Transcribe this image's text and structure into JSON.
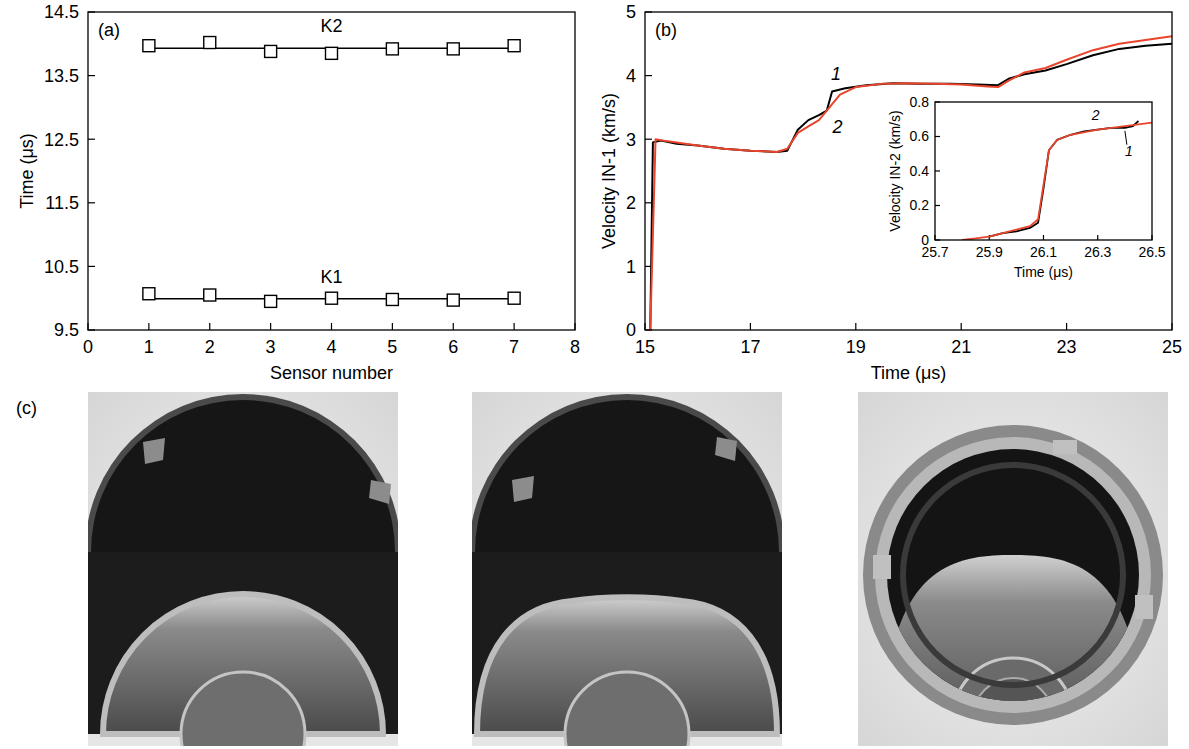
{
  "chart_data": [
    {
      "type": "scatter",
      "label": "(a)",
      "xlabel": "Sensor number",
      "ylabel": "Time (μs)",
      "x": [
        1,
        2,
        3,
        4,
        5,
        6,
        7
      ],
      "xlim": [
        0,
        8
      ],
      "xticks": [
        0,
        1,
        2,
        3,
        4,
        5,
        6,
        7,
        8
      ],
      "ylim": [
        9.5,
        14.5
      ],
      "yticks": [
        9.5,
        10.5,
        11.5,
        12.5,
        13.5,
        14.5
      ],
      "series": [
        {
          "name": "K1",
          "color": "#000000",
          "marker": "square",
          "values": [
            10.07,
            10.05,
            9.95,
            10.0,
            9.98,
            9.97,
            10.0
          ],
          "fit": 9.99
        },
        {
          "name": "K2",
          "color": "#000000",
          "marker": "square",
          "values": [
            13.97,
            14.02,
            13.88,
            13.85,
            13.92,
            13.92,
            13.97
          ],
          "fit": 13.93
        }
      ]
    },
    {
      "type": "line",
      "label": "(b)",
      "xlabel": "Time (μs)",
      "ylabel": "Velocity IN-1 (km/s)",
      "xlim": [
        15,
        25
      ],
      "xticks": [
        15,
        17,
        19,
        21,
        23,
        25
      ],
      "ylim": [
        0,
        5
      ],
      "yticks": [
        0,
        1,
        2,
        3,
        4,
        5
      ],
      "series": [
        {
          "name": "1",
          "color": "#000000",
          "line_style": "solid",
          "x": [
            15.1,
            15.15,
            15.3,
            15.6,
            16.0,
            16.5,
            17.0,
            17.5,
            17.7,
            17.9,
            18.1,
            18.3,
            18.45,
            18.55,
            18.8,
            19.2,
            19.7,
            20.2,
            20.8,
            21.3,
            21.7,
            21.9,
            22.2,
            22.6,
            23.0,
            23.5,
            24.0,
            24.5,
            25.0
          ],
          "values": [
            0,
            2.95,
            2.98,
            2.93,
            2.9,
            2.85,
            2.82,
            2.8,
            2.82,
            3.15,
            3.3,
            3.38,
            3.45,
            3.75,
            3.8,
            3.85,
            3.88,
            3.87,
            3.87,
            3.86,
            3.85,
            3.95,
            4.02,
            4.08,
            4.18,
            4.32,
            4.42,
            4.47,
            4.5
          ]
        },
        {
          "name": "2",
          "color": "#e8452c",
          "line_style": "solid",
          "x": [
            15.1,
            15.2,
            15.4,
            16.0,
            16.5,
            17.0,
            17.5,
            17.7,
            17.9,
            18.1,
            18.3,
            18.5,
            18.7,
            19.0,
            19.5,
            20.0,
            20.5,
            21.0,
            21.5,
            21.7,
            21.9,
            22.2,
            22.6,
            23.0,
            23.5,
            24.0,
            24.5,
            25.0
          ],
          "values": [
            0,
            3.0,
            2.97,
            2.9,
            2.85,
            2.82,
            2.8,
            2.85,
            3.1,
            3.2,
            3.3,
            3.5,
            3.7,
            3.82,
            3.87,
            3.88,
            3.87,
            3.86,
            3.83,
            3.82,
            3.92,
            4.05,
            4.12,
            4.25,
            4.4,
            4.5,
            4.56,
            4.62
          ]
        }
      ]
    },
    {
      "type": "line",
      "xlabel": "Time (μs)",
      "ylabel": "Velocity IN-2 (km/s)",
      "xlim": [
        25.7,
        26.5
      ],
      "xticks": [
        25.7,
        25.9,
        26.1,
        26.3,
        26.5
      ],
      "ylim": [
        0,
        0.8
      ],
      "yticks": [
        0,
        0.2,
        0.4,
        0.6,
        0.8
      ],
      "series": [
        {
          "name": "1",
          "color": "#000000",
          "line_style": "solid",
          "x": [
            25.9,
            25.95,
            26.0,
            26.05,
            26.08,
            26.1,
            26.12,
            26.15,
            26.2,
            26.25,
            26.3,
            26.35,
            26.4,
            26.43,
            26.45
          ],
          "values": [
            0.02,
            0.04,
            0.05,
            0.07,
            0.1,
            0.3,
            0.52,
            0.58,
            0.61,
            0.63,
            0.64,
            0.65,
            0.65,
            0.66,
            0.69
          ]
        },
        {
          "name": "2",
          "color": "#e8452c",
          "line_style": "solid",
          "x": [
            25.8,
            25.85,
            25.9,
            25.95,
            26.0,
            26.05,
            26.08,
            26.1,
            26.12,
            26.15,
            26.2,
            26.3,
            26.4,
            26.5
          ],
          "values": [
            0,
            0.01,
            0.02,
            0.04,
            0.06,
            0.08,
            0.12,
            0.32,
            0.52,
            0.58,
            0.61,
            0.64,
            0.66,
            0.68
          ]
        }
      ]
    }
  ],
  "panel_c": {
    "label": "(c)"
  }
}
